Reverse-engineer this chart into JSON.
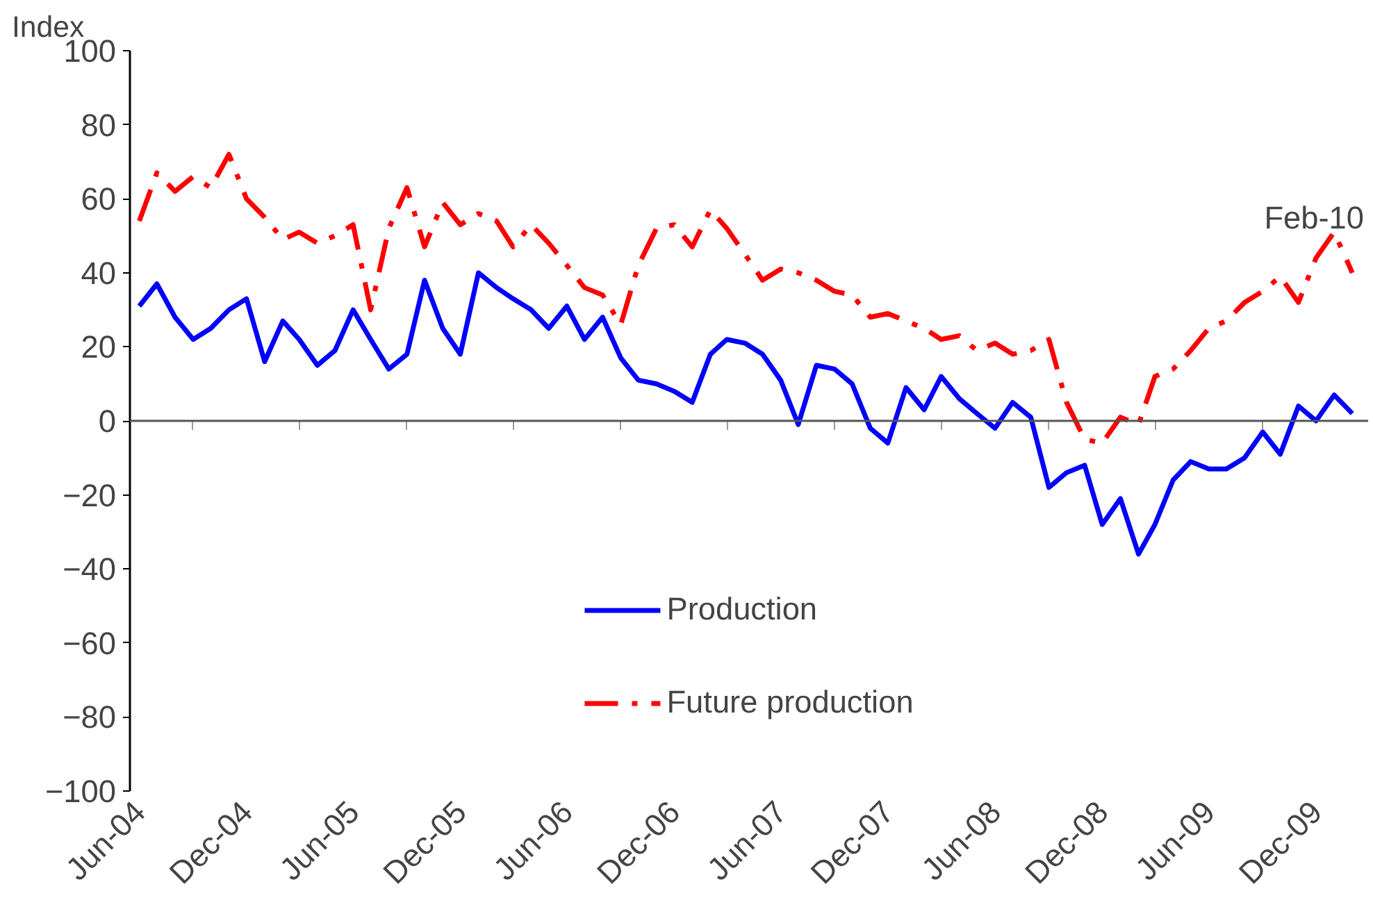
{
  "chart_data": {
    "type": "line",
    "ylabel": "Index",
    "x": [
      "2004-06",
      "2004-07",
      "2004-08",
      "2004-09",
      "2004-10",
      "2004-11",
      "2004-12",
      "2005-01",
      "2005-02",
      "2005-03",
      "2005-04",
      "2005-05",
      "2005-06",
      "2005-07",
      "2005-08",
      "2005-09",
      "2005-10",
      "2005-11",
      "2005-12",
      "2006-01",
      "2006-02",
      "2006-03",
      "2006-04",
      "2006-05",
      "2006-06",
      "2006-07",
      "2006-08",
      "2006-09",
      "2006-10",
      "2006-11",
      "2006-12",
      "2007-01",
      "2007-02",
      "2007-03",
      "2007-04",
      "2007-05",
      "2007-06",
      "2007-07",
      "2007-08",
      "2007-09",
      "2007-10",
      "2007-11",
      "2007-12",
      "2008-01",
      "2008-02",
      "2008-03",
      "2008-04",
      "2008-05",
      "2008-06",
      "2008-07",
      "2008-08",
      "2008-09",
      "2008-10",
      "2008-11",
      "2008-12",
      "2009-01",
      "2009-02",
      "2009-03",
      "2009-04",
      "2009-05",
      "2009-06",
      "2009-07",
      "2009-08",
      "2009-09",
      "2009-10",
      "2009-11",
      "2009-12",
      "2010-01",
      "2010-02"
    ],
    "series": [
      {
        "name": "Production",
        "color": "#0000ff",
        "line_style": "solid",
        "values": [
          31,
          37,
          28,
          22,
          25,
          30,
          33,
          16,
          27,
          22,
          15,
          19,
          30,
          22,
          14,
          18,
          38,
          25,
          18,
          40,
          36,
          33,
          30,
          25,
          31,
          22,
          28,
          17,
          11,
          10,
          8,
          5,
          18,
          22,
          21,
          18,
          11,
          -1,
          15,
          14,
          10,
          -2,
          -6,
          9,
          3,
          12,
          6,
          2,
          -2,
          5,
          1,
          -18,
          -14,
          -12,
          -28,
          -21,
          -36,
          -28,
          -16,
          -11,
          -13,
          -13,
          -10,
          -3,
          -9,
          4,
          0,
          7,
          2
        ]
      },
      {
        "name": "Future production",
        "color": "#ff0000",
        "line_style": "dashdot",
        "values": [
          54,
          67,
          62,
          66,
          63,
          72,
          60,
          55,
          49,
          51,
          48,
          50,
          53,
          30,
          52,
          63,
          47,
          59,
          53,
          56,
          54,
          47,
          53,
          48,
          42,
          36,
          34,
          26,
          42,
          52,
          53,
          47,
          57,
          52,
          45,
          38,
          41,
          40,
          38,
          35,
          34,
          28,
          29,
          27,
          25,
          22,
          23,
          19,
          21,
          18,
          19,
          22,
          5,
          -5,
          -6,
          1,
          -1,
          12,
          14,
          19,
          25,
          27,
          32,
          35,
          39,
          32,
          44,
          51,
          40
        ]
      }
    ],
    "annotations": [
      "Feb-10"
    ],
    "xlim": [
      "2004-05-16",
      "2010-02-28"
    ],
    "xticks": [
      {
        "value": "2004-06",
        "label": "Jun-04"
      },
      {
        "value": "2004-12",
        "label": "Dec-04"
      },
      {
        "value": "2005-06",
        "label": "Jun-05"
      },
      {
        "value": "2005-12",
        "label": "Dec-05"
      },
      {
        "value": "2006-06",
        "label": "Jun-06"
      },
      {
        "value": "2006-12",
        "label": "Dec-06"
      },
      {
        "value": "2007-06",
        "label": "Jun-07"
      },
      {
        "value": "2007-12",
        "label": "Dec-07"
      },
      {
        "value": "2008-06",
        "label": "Jun-08"
      },
      {
        "value": "2008-12",
        "label": "Dec-08"
      },
      {
        "value": "2009-06",
        "label": "Jun-09"
      },
      {
        "value": "2009-12",
        "label": "Dec-09"
      }
    ],
    "ylim": [
      -100,
      100
    ],
    "yticks": [
      -100,
      -80,
      -60,
      -40,
      -20,
      0,
      20,
      40,
      60,
      80,
      100
    ],
    "ref_lines": [
      {
        "axis": "y",
        "value": 0,
        "color": "#555555"
      }
    ],
    "grid": false,
    "legend": "bottom",
    "marker": "none"
  }
}
